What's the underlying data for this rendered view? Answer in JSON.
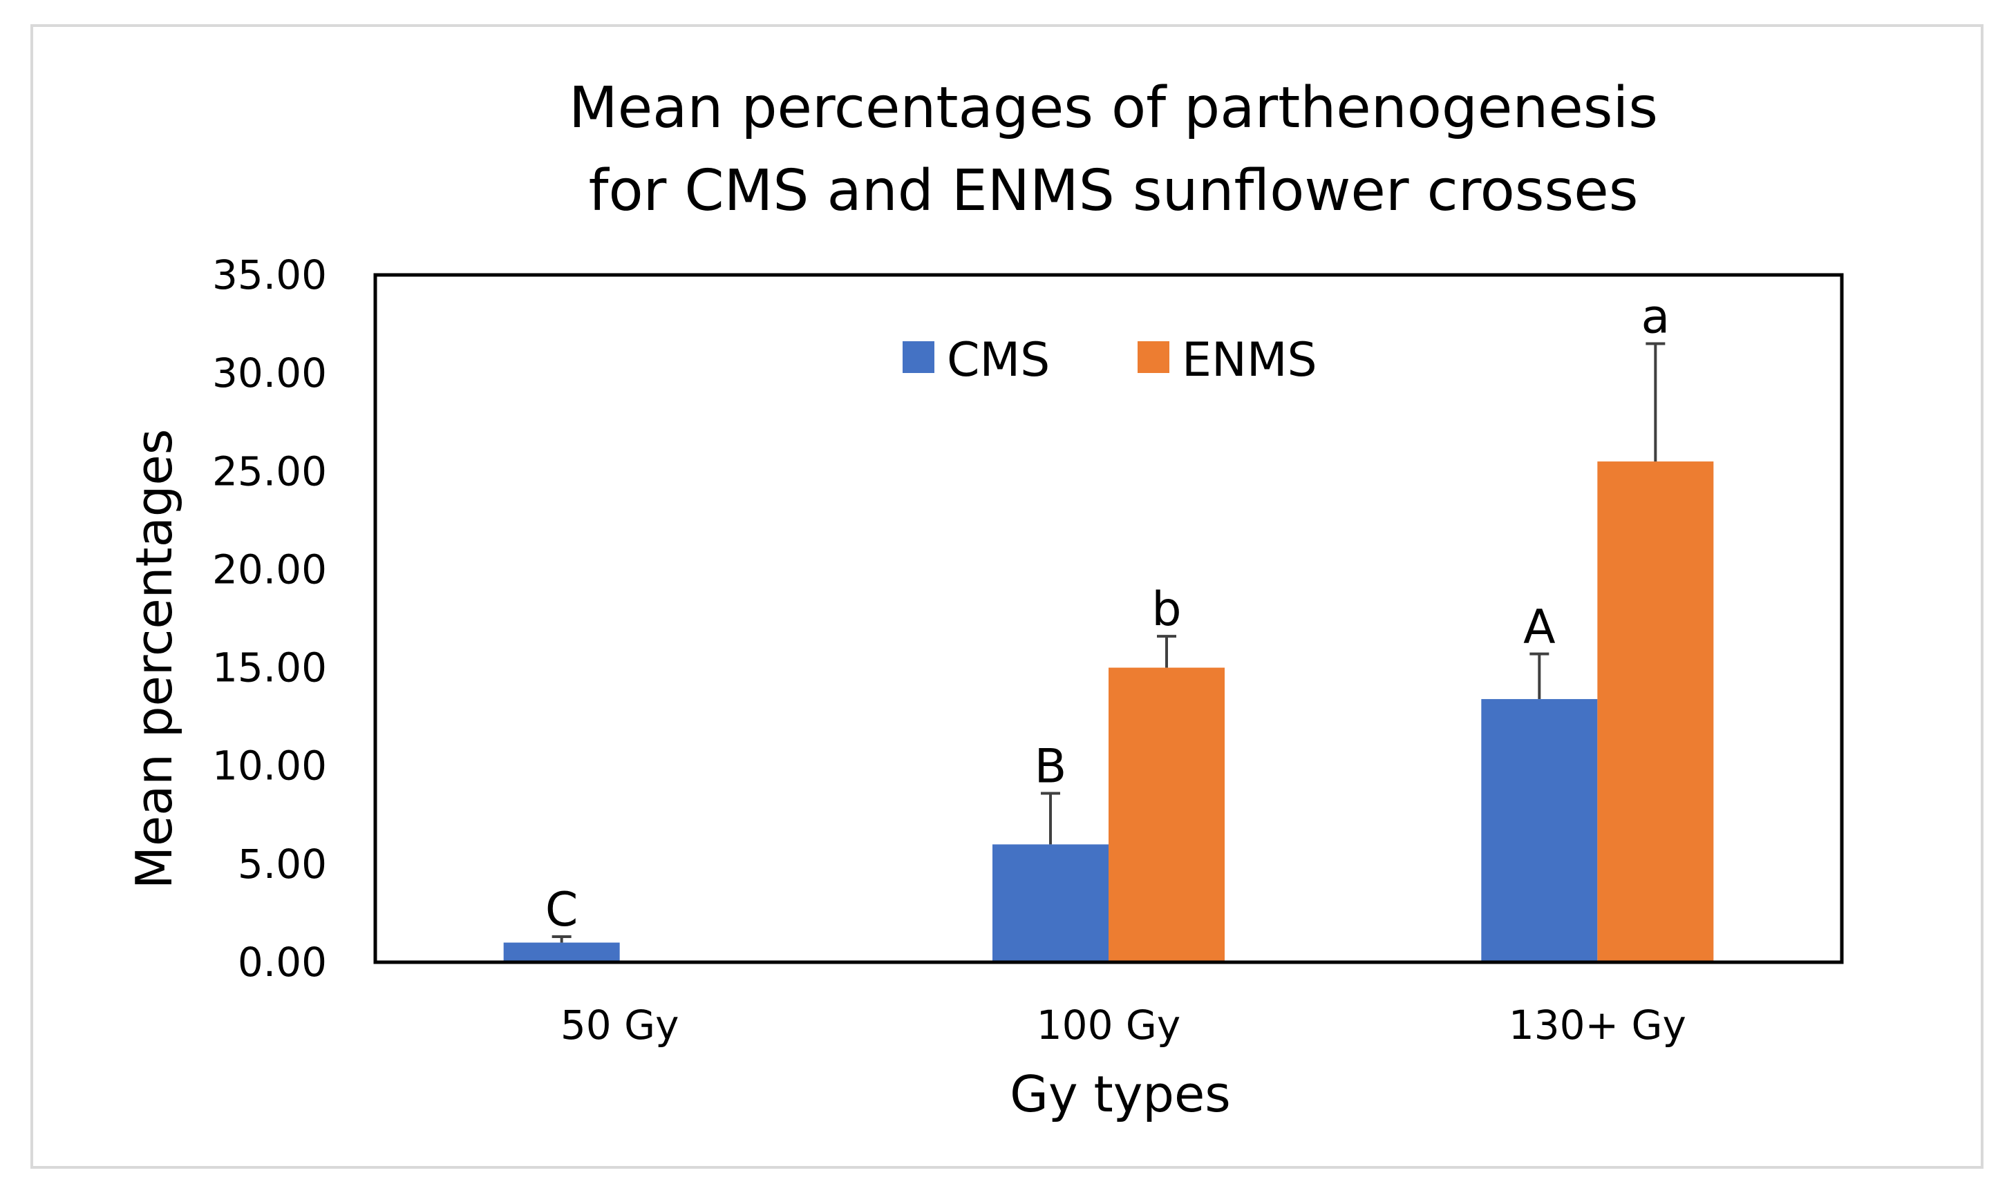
{
  "chart_data": {
    "type": "bar",
    "title": "Mean percentages of parthenogenesis for CMS and ENMS sunflower crosses",
    "title_lines": [
      "Mean percentages of parthenogenesis",
      "for CMS and ENMS sunflower crosses"
    ],
    "xlabel": "Gy types",
    "ylabel": "Mean percentages",
    "categories": [
      "50 Gy",
      "100 Gy",
      "130+ Gy"
    ],
    "ylim": [
      0,
      35
    ],
    "yticks": [
      0,
      5,
      10,
      15,
      20,
      25,
      30,
      35
    ],
    "ytick_labels": [
      "0.00",
      "5.00",
      "10.00",
      "15.00",
      "20.00",
      "25.00",
      "30.00",
      "35.00"
    ],
    "grid": false,
    "legend_position": "top-center",
    "series": [
      {
        "name": "CMS",
        "color": "#4472c4",
        "values": [
          1.0,
          6.0,
          13.4
        ],
        "errors": [
          0.3,
          2.6,
          2.3
        ],
        "labels": [
          "C",
          "B",
          "A"
        ]
      },
      {
        "name": "ENMS",
        "color": "#ed7d31",
        "values": [
          0.0,
          15.0,
          25.5
        ],
        "errors": [
          0.0,
          1.6,
          6.0
        ],
        "labels": [
          "",
          "b",
          "a"
        ]
      }
    ]
  }
}
